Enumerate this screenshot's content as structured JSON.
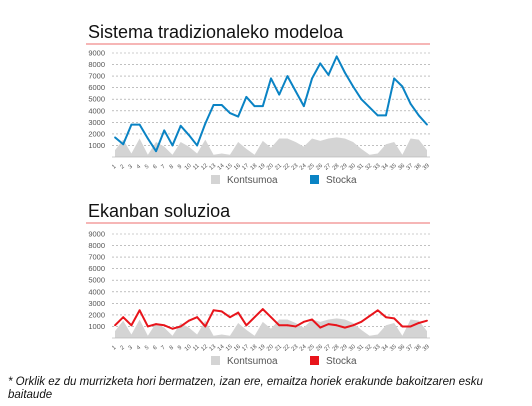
{
  "chart_data": [
    {
      "type": "line",
      "title": "Sistema tradizionaleko modeloa",
      "x": [
        "1",
        "2",
        "3",
        "4",
        "5",
        "6",
        "7",
        "8",
        "9",
        "10",
        "11",
        "12",
        "13",
        "14",
        "15",
        "16",
        "17",
        "18",
        "19",
        "20",
        "21",
        "22",
        "23",
        "24",
        "25",
        "26",
        "27",
        "28",
        "29",
        "30",
        "31",
        "32",
        "33",
        "34",
        "35",
        "36",
        "37",
        "38",
        "39"
      ],
      "ylim": [
        0,
        9000
      ],
      "yticks": [
        1000,
        2000,
        3000,
        4000,
        5000,
        6000,
        7000,
        8000,
        9000
      ],
      "grid": true,
      "legend_position": "bottom",
      "series": [
        {
          "name": "Kontsumoa",
          "kind": "area",
          "color": "#d4d4d4",
          "values": [
            600,
            1500,
            300,
            1600,
            200,
            1300,
            900,
            200,
            1300,
            900,
            300,
            1500,
            200,
            300,
            200,
            1300,
            700,
            200,
            1400,
            800,
            1600,
            1600,
            1300,
            900,
            1600,
            1400,
            1600,
            1700,
            1600,
            1300,
            700,
            200,
            300,
            1100,
            1300,
            200,
            1600,
            1500,
            600
          ]
        },
        {
          "name": "Stocka",
          "kind": "line",
          "color": "#0a83c4",
          "values": [
            1700,
            1100,
            2800,
            2800,
            1600,
            500,
            2300,
            1000,
            2700,
            1900,
            1000,
            2900,
            4500,
            4500,
            3800,
            3500,
            5200,
            4400,
            4400,
            6800,
            5400,
            7000,
            5700,
            4400,
            6800,
            8100,
            7100,
            8700,
            7300,
            6100,
            5000,
            4300,
            3600,
            3600,
            6800,
            6100,
            4600,
            3600,
            2800
          ]
        }
      ]
    },
    {
      "type": "line",
      "title": "Ekanban soluzioa",
      "x": [
        "1",
        "2",
        "3",
        "4",
        "5",
        "6",
        "7",
        "8",
        "9",
        "10",
        "11",
        "12",
        "13",
        "14",
        "15",
        "16",
        "17",
        "18",
        "19",
        "20",
        "21",
        "22",
        "23",
        "24",
        "25",
        "26",
        "27",
        "28",
        "29",
        "30",
        "31",
        "32",
        "33",
        "34",
        "35",
        "36",
        "37",
        "38",
        "39"
      ],
      "ylim": [
        0,
        9000
      ],
      "yticks": [
        1000,
        2000,
        3000,
        4000,
        5000,
        6000,
        7000,
        8000,
        9000
      ],
      "grid": true,
      "legend_position": "bottom",
      "series": [
        {
          "name": "Kontsumoa",
          "kind": "area",
          "color": "#d4d4d4",
          "values": [
            600,
            1500,
            300,
            1600,
            200,
            1300,
            900,
            200,
            1300,
            900,
            300,
            1500,
            200,
            300,
            200,
            1300,
            700,
            200,
            1400,
            800,
            1600,
            1600,
            1300,
            900,
            1600,
            1400,
            1600,
            1700,
            1600,
            1300,
            700,
            200,
            300,
            1100,
            1300,
            200,
            1600,
            1500,
            600
          ]
        },
        {
          "name": "Stocka",
          "kind": "line",
          "color": "#e8141b",
          "values": [
            1100,
            1800,
            1100,
            2400,
            1000,
            1200,
            1100,
            800,
            1000,
            1500,
            1800,
            1000,
            2400,
            2300,
            1800,
            2200,
            1100,
            1800,
            2500,
            1800,
            1100,
            1100,
            1000,
            1400,
            1600,
            900,
            1200,
            1100,
            900,
            1100,
            1400,
            1900,
            2400,
            1800,
            1700,
            1000,
            1000,
            1300,
            1500
          ]
        }
      ]
    }
  ],
  "footnote": "* Orklik ez du murrizketa hori bermatzen, izan ere, emaitza horiek erakunde bakoitzaren esku baitaude"
}
